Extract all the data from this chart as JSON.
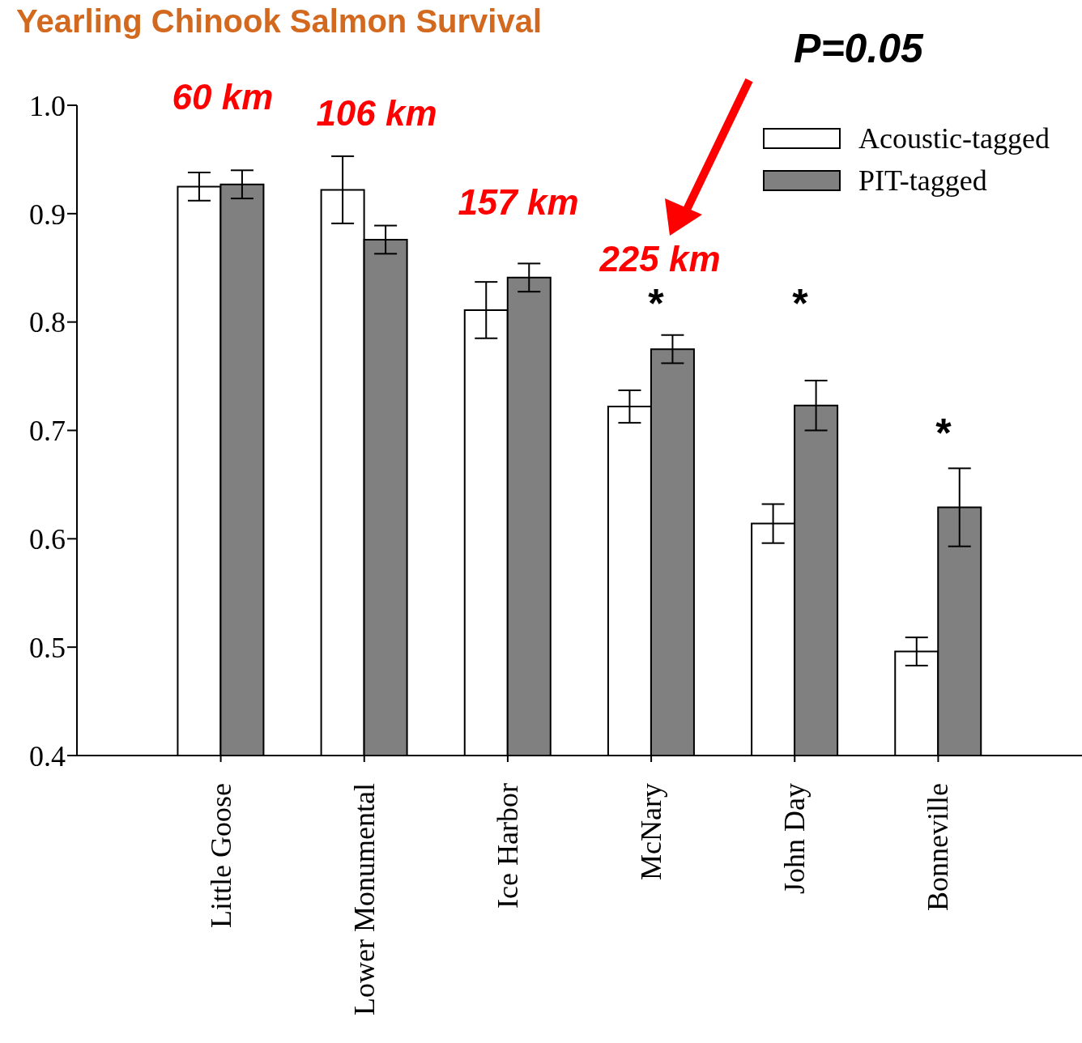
{
  "chart_data": {
    "type": "bar",
    "title": "Yearling Chinook Salmon Survival",
    "categories": [
      "Little Goose",
      "Lower Monumental",
      "Ice Harbor",
      "McNary",
      "John Day",
      "Bonneville"
    ],
    "series": [
      {
        "name": "Acoustic-tagged",
        "color": "#ffffff",
        "values": [
          0.925,
          0.922,
          0.811,
          0.722,
          0.614,
          0.496
        ],
        "errors": [
          0.013,
          0.031,
          0.026,
          0.015,
          0.018,
          0.013
        ]
      },
      {
        "name": "PIT-tagged",
        "color": "#808080",
        "values": [
          0.927,
          0.876,
          0.841,
          0.775,
          0.723,
          0.629
        ],
        "errors": [
          0.013,
          0.013,
          0.013,
          0.013,
          0.023,
          0.036
        ]
      }
    ],
    "ylim": [
      0.4,
      1.0
    ],
    "yticks": [
      0.4,
      0.5,
      0.6,
      0.7,
      0.8,
      0.9,
      {
        "value": 1.0,
        "label": "1.0"
      }
    ],
    "legend": "top right",
    "grid": false,
    "annotations": [
      "60 km",
      "106 km",
      "157 km",
      "225 km",
      "*",
      "*",
      "*",
      "P=0.05"
    ]
  }
}
